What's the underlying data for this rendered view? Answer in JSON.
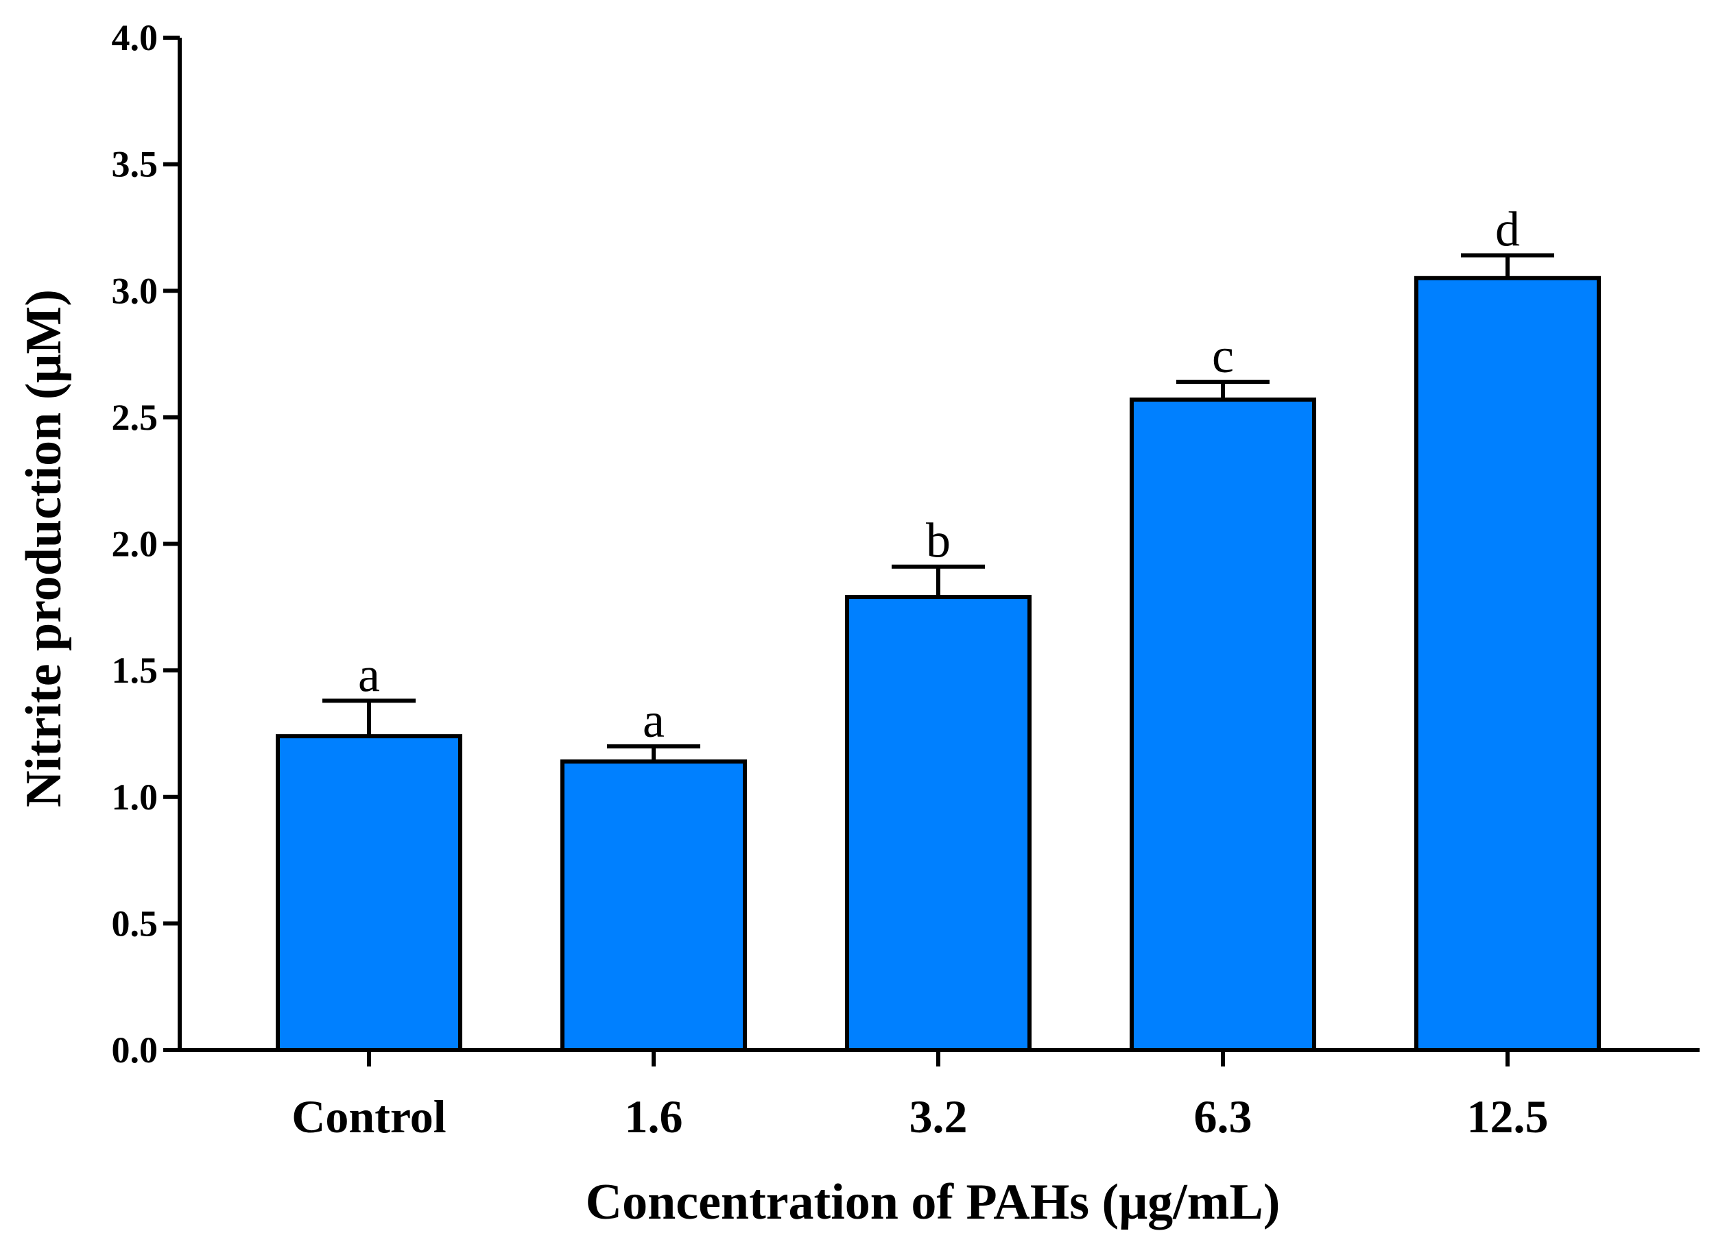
{
  "chart_data": {
    "type": "bar",
    "title": "",
    "xlabel": "Concentration of PAHs (μg/mL)",
    "ylabel": "Nitrite production (μM)",
    "categories": [
      "Control",
      "1.6",
      "3.2",
      "6.3",
      "12.5"
    ],
    "values": [
      1.24,
      1.14,
      1.79,
      2.57,
      3.05
    ],
    "errors": [
      0.14,
      0.06,
      0.12,
      0.07,
      0.09
    ],
    "significance_letters": [
      "a",
      "a",
      "b",
      "c",
      "d"
    ],
    "ylim": [
      0,
      4.0
    ],
    "yticks": [
      0.0,
      0.5,
      1.0,
      1.5,
      2.0,
      2.5,
      3.0,
      3.5,
      4.0
    ],
    "ytick_labels": [
      "0.0",
      "0.5",
      "1.0",
      "1.5",
      "2.0",
      "2.5",
      "3.0",
      "3.5",
      "4.0"
    ],
    "bar_color": "#0080ff",
    "edge_color": "#000000",
    "grid": false,
    "legend": "none"
  }
}
